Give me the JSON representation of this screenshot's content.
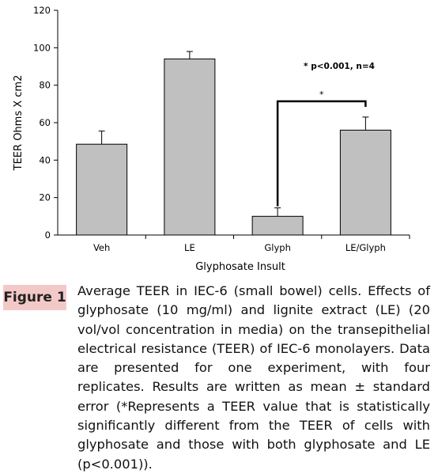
{
  "chart_data": {
    "type": "bar",
    "categories": [
      "Veh",
      "LE",
      "Glyph",
      "LE/Glyph"
    ],
    "values": [
      48.5,
      94,
      10,
      56
    ],
    "errors": [
      7,
      4,
      4.5,
      7
    ],
    "xlabel": "Glyphosate Insult",
    "ylabel": "TEER Ohms X cm2",
    "ylim": [
      0,
      120
    ],
    "yticks": [
      0,
      20,
      40,
      60,
      80,
      100,
      120
    ],
    "grid": false,
    "bar_color": "#c0c0c0",
    "annotations": {
      "significance": "* p<0.001, n=4",
      "bracket_mark": "*",
      "bracket_between": [
        "Glyph",
        "LE/Glyph"
      ]
    }
  },
  "figure": {
    "label": "Figure 1",
    "caption": "Average TEER in IEC-6 (small bowel) cells. Effects of glyphosate (10 mg/ml) and lignite extract (LE) (20 vol/vol concentration in media) on the transepithelial electrical resistance (TEER) of IEC-6 monolayers. Data are presented for one experiment, with four replicates. Results are written as mean ± standard error (*Represents a TEER value that is statistically significantly different from the TEER of cells with glyphosate and those with both glyphosate and LE (p<0.001))."
  },
  "colors": {
    "badge": "#f3c9c7"
  }
}
